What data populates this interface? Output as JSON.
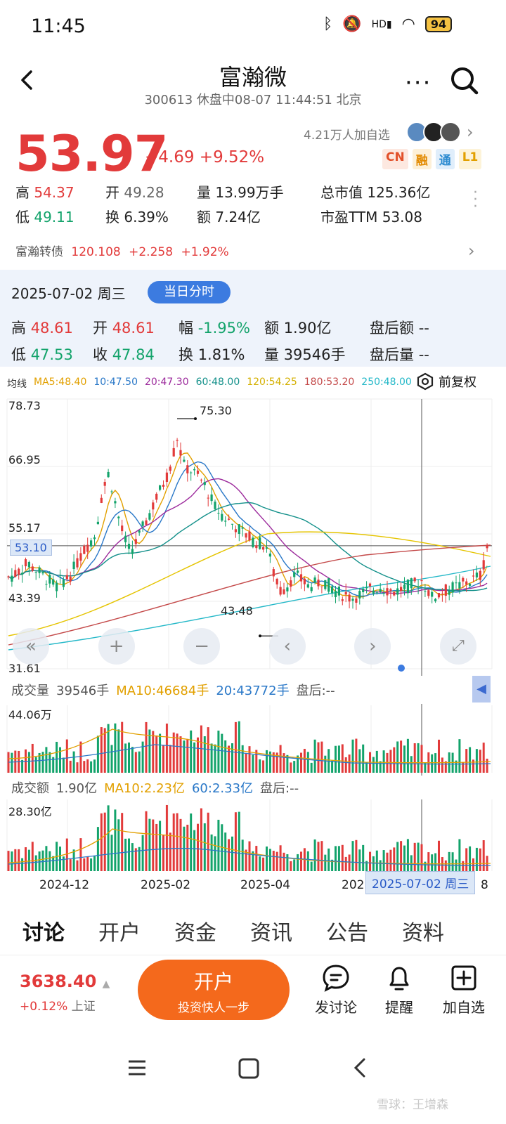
{
  "status": {
    "time": "11:45",
    "network": "HD",
    "battery": "94"
  },
  "header": {
    "title": "富瀚微",
    "subtitle": "300613 休盘中08-07 11:44:51 北京"
  },
  "quote": {
    "price": "53.97",
    "change": "+4.69 +9.52%",
    "followers": "4.21万人加自选",
    "badges": [
      "CN",
      "融",
      "通",
      "L1"
    ],
    "stats": {
      "high_label": "高",
      "high": "54.37",
      "open_label": "开",
      "open": "49.28",
      "vol_label": "量",
      "vol": "13.99万手",
      "mcap_label": "总市值",
      "mcap": "125.36亿",
      "low_label": "低",
      "low": "49.11",
      "turn_label": "换",
      "turn": "6.39%",
      "amt_label": "额",
      "amt": "7.24亿",
      "pe_label": "市盈TTM",
      "pe": "53.08"
    },
    "convertible": {
      "name": "富瀚转债",
      "price": "120.108",
      "chg": "+2.258",
      "pct": "+1.92%"
    }
  },
  "day": {
    "date": "2025-07-02 周三",
    "button": "当日分时",
    "high_label": "高",
    "high": "48.61",
    "open_label": "开",
    "open": "48.61",
    "amp_label": "幅",
    "amp": "-1.95%",
    "amt_label": "额",
    "amt": "1.90亿",
    "after_amt_label": "盘后额",
    "after_amt": "--",
    "low_label": "低",
    "low": "47.53",
    "close_label": "收",
    "close": "47.84",
    "turn_label": "换",
    "turn": "1.81%",
    "vol_label": "量",
    "vol": "39546手",
    "after_vol_label": "盘后量",
    "after_vol": "--"
  },
  "ma": {
    "label": "均线",
    "items": [
      {
        "text": "MA5:48.40",
        "color": "#e2a000"
      },
      {
        "text": "10:47.50",
        "color": "#2a78c8"
      },
      {
        "text": "20:47.30",
        "color": "#9c2a9c"
      },
      {
        "text": "60:48.00",
        "color": "#13908a"
      },
      {
        "text": "120:54.25",
        "color": "#e5c400"
      },
      {
        "text": "180:53.20",
        "color": "#c44a4a"
      },
      {
        "text": "250:48.00",
        "color": "#24b8c8"
      }
    ],
    "fuquan": "前复权"
  },
  "chart": {
    "y_labels": [
      "78.73",
      "66.95",
      "55.17",
      "43.39",
      "31.61"
    ],
    "crosshair_value": "53.10",
    "max_label": "75.30",
    "min_label": "43.48"
  },
  "volume": {
    "label": "成交量",
    "value": "39546手",
    "ma10": "MA10:46684手",
    "ma20": "20:43772手",
    "after": "盘后:--",
    "max_label": "44.06万"
  },
  "amount": {
    "label": "成交额",
    "value": "1.90亿",
    "ma10": "MA10:2.23亿",
    "ma60": "60:2.33亿",
    "after": "盘后:--",
    "max_label": "28.30亿"
  },
  "date_axis": {
    "d1": "2024-12",
    "d2": "2025-02",
    "d3": "2025-04",
    "d4": "202",
    "d5": "8",
    "tip": "2025-07-02 周三"
  },
  "tabs": [
    "讨论",
    "开户",
    "资金",
    "资讯",
    "公告",
    "资料"
  ],
  "bottom": {
    "index_value": "3638.40",
    "index_change": "+0.12%",
    "index_name": "上证",
    "open_main": "开户",
    "open_sub": "投资快人一步",
    "discuss": "发讨论",
    "alert": "提醒",
    "add": "加自选"
  },
  "watermark": "雪球：王增森"
}
